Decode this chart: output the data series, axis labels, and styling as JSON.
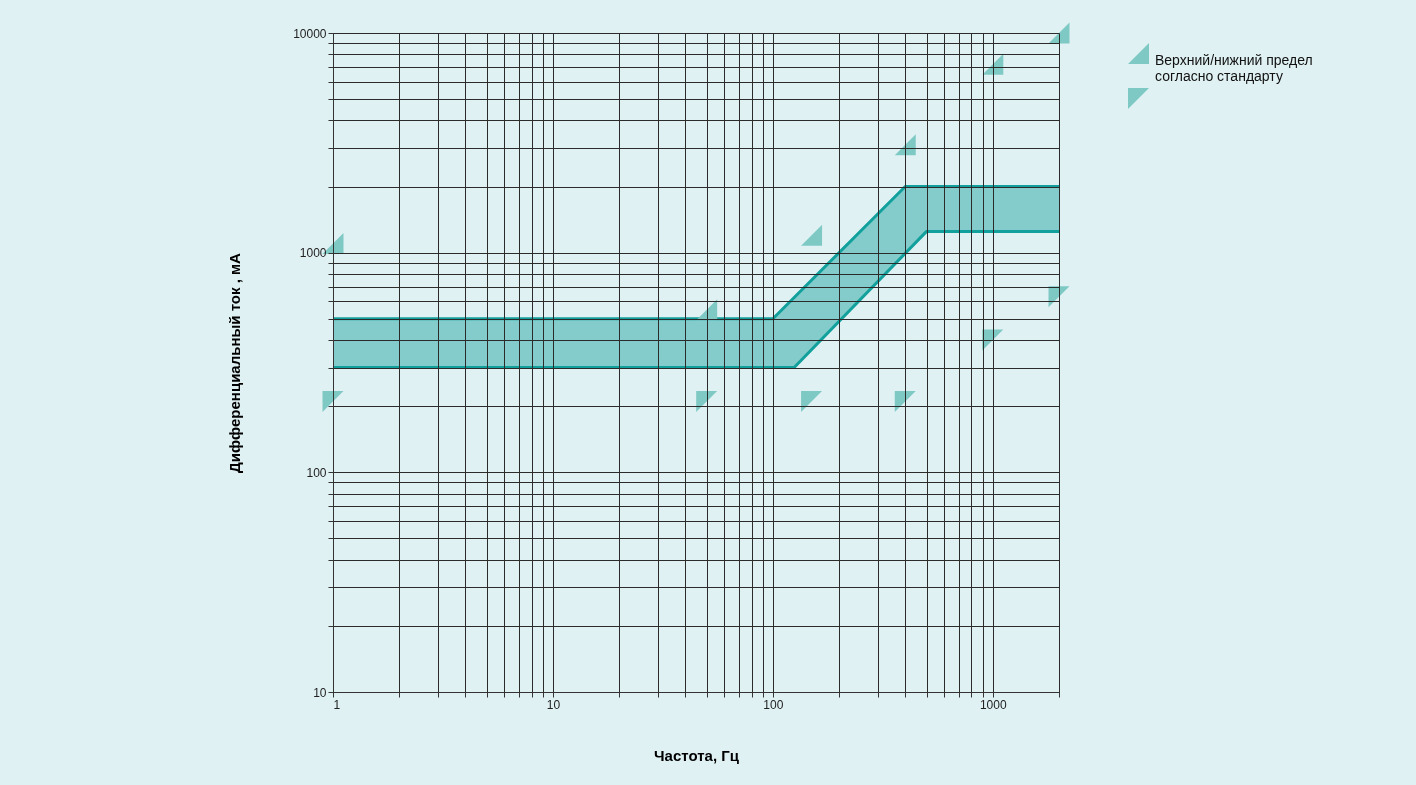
{
  "chart_data": {
    "type": "line",
    "xlabel": "Частота, Гц",
    "ylabel": "Дифференциальный  ток , мА",
    "log": "xy",
    "xlim": [
      1,
      2000
    ],
    "ylim": [
      10,
      10000
    ],
    "xticks": [
      1,
      {
        "value": 2,
        "label": null
      },
      {
        "value": 3,
        "label": null
      },
      {
        "value": 4,
        "label": null
      },
      {
        "value": 5,
        "label": null
      },
      {
        "value": 6,
        "label": null
      },
      {
        "value": 7,
        "label": null
      },
      {
        "value": 8,
        "label": null
      },
      {
        "value": 9,
        "label": null
      },
      10,
      {
        "value": 20,
        "label": null
      },
      {
        "value": 30,
        "label": null
      },
      {
        "value": 40,
        "label": null
      },
      {
        "value": 50,
        "label": null
      },
      {
        "value": 60,
        "label": null
      },
      {
        "value": 70,
        "label": null
      },
      {
        "value": 80,
        "label": null
      },
      {
        "value": 90,
        "label": null
      },
      100,
      {
        "value": 200,
        "label": null
      },
      {
        "value": 300,
        "label": null
      },
      {
        "value": 400,
        "label": null
      },
      {
        "value": 500,
        "label": null
      },
      {
        "value": 600,
        "label": null
      },
      {
        "value": 700,
        "label": null
      },
      {
        "value": 800,
        "label": null
      },
      {
        "value": 900,
        "label": null
      },
      1000,
      {
        "value": 2000,
        "label": null
      }
    ],
    "yticks": [
      10,
      {
        "value": 20,
        "label": null
      },
      {
        "value": 30,
        "label": null
      },
      {
        "value": 40,
        "label": null
      },
      {
        "value": 50,
        "label": null
      },
      {
        "value": 60,
        "label": null
      },
      {
        "value": 70,
        "label": null
      },
      {
        "value": 80,
        "label": null
      },
      {
        "value": 90,
        "label": null
      },
      100,
      {
        "value": 200,
        "label": null
      },
      {
        "value": 300,
        "label": null
      },
      {
        "value": 400,
        "label": null
      },
      {
        "value": 500,
        "label": null
      },
      {
        "value": 600,
        "label": null
      },
      {
        "value": 700,
        "label": null
      },
      {
        "value": 800,
        "label": null
      },
      {
        "value": 900,
        "label": null
      },
      1000,
      {
        "value": 2000,
        "label": null
      },
      {
        "value": 3000,
        "label": null
      },
      {
        "value": 4000,
        "label": null
      },
      {
        "value": 5000,
        "label": null
      },
      {
        "value": 6000,
        "label": null
      },
      {
        "value": 7000,
        "label": null
      },
      {
        "value": 8000,
        "label": null
      },
      {
        "value": 9000,
        "label": null
      },
      10000
    ],
    "grid": true,
    "legend": "top right",
    "series": [
      {
        "color": "#12a09c",
        "x": [
          1,
          100,
          125,
          400,
          500,
          2000
        ],
        "values": [
          500,
          500,
          625,
          2000,
          2000,
          2000
        ],
        "lower": [
          300,
          300,
          300,
          1000,
          1250,
          1250
        ],
        "upper": [
          500,
          500,
          625,
          2000,
          2000,
          2000
        ]
      },
      {
        "type": "line",
        "color": "#12a09c",
        "x": [
          1,
          125,
          500,
          2000
        ],
        "values": [
          300,
          300,
          1250,
          1250
        ]
      },
      {
        "type": "scatter",
        "name": "Верхний/нижний предел согласно стандарту",
        "marker": "triangle",
        "color": "#7fc9c5",
        "x": [
          1,
          50,
          150,
          400,
          1000,
          2000
        ],
        "values": [
          1100,
          550,
          1200,
          3100,
          7200,
          10000
        ]
      },
      {
        "type": "scatter",
        "marker": "triangle",
        "color": "#7fc9c5",
        "x": [
          1,
          50,
          150,
          400,
          1000,
          2000
        ],
        "values": [
          210,
          210,
          210,
          210,
          400,
          630
        ]
      }
    ]
  }
}
